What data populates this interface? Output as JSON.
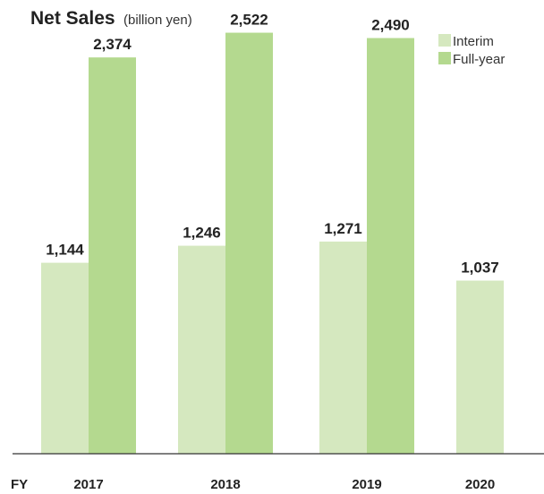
{
  "colors": {
    "interim": "#d5e8bf",
    "full_year": "#b4d98f",
    "axis": "#333333"
  },
  "chart_data": {
    "type": "bar",
    "title": "Net Sales",
    "unit_label": "(billion yen)",
    "axis_prefix": "FY",
    "categories": [
      "2017",
      "2018",
      "2019",
      "2020"
    ],
    "series": [
      {
        "name": "Interim",
        "values": [
          1144,
          1246,
          1271,
          1037
        ],
        "labels": [
          "1,144",
          "1,246",
          "1,271",
          "1,037"
        ]
      },
      {
        "name": "Full-year",
        "values": [
          2374,
          2522,
          2490,
          null
        ],
        "labels": [
          "2,374",
          "2,522",
          "2,490",
          ""
        ]
      }
    ],
    "ylim": [
      0,
      2600
    ],
    "grid": false,
    "legend_position": "top-right"
  }
}
